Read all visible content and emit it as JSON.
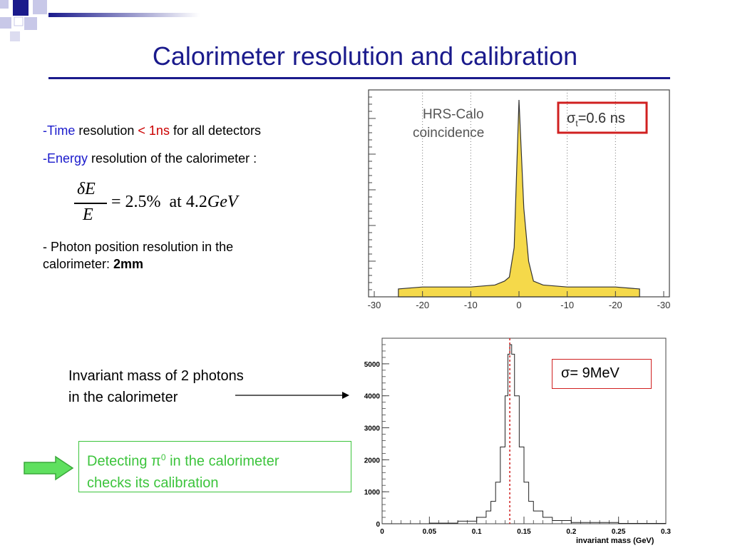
{
  "slide": {
    "title": "Calorimeter resolution and calibration"
  },
  "bullets": {
    "time": {
      "dash": "-",
      "word": "Time",
      "mid": " resolution ",
      "lt": "< 1ns",
      "tail": " for all detectors"
    },
    "energy": {
      "dash": "-",
      "word": "Energy",
      "tail": " resolution of the calorimeter :"
    },
    "formula": {
      "numerator": "δE",
      "denominator": "E",
      "rhs": "= 2.5%",
      "at": "at",
      "value": "4.2",
      "unit": "GeV"
    },
    "photon": {
      "line1": "- Photon position resolution in the",
      "line2": "calorimeter: ",
      "bold": "2mm"
    }
  },
  "invariant": {
    "line1": "Invariant mass of 2 photons",
    "line2": "in the calorimeter"
  },
  "callout": {
    "line1_a": "Detecting π",
    "line1_sup": "0",
    "line1_b": " in the calorimeter",
    "line2": "checks its calibration"
  },
  "colors": {
    "title": "#1a1a8c",
    "highlight_blue": "#1a1acc",
    "highlight_red": "#cc0000",
    "callout_green": "#3cc43c",
    "histogram_fill": "#f5d94a"
  },
  "chart_data": [
    {
      "type": "bar",
      "title": "",
      "annotation_label": "HRS-Calo coincidence",
      "annotation_box": "σt=0.6 ns",
      "x_tick_labels": [
        "-30",
        "-20",
        "-10",
        "0",
        "-10",
        "-20",
        "-30"
      ],
      "xlim": [
        -30,
        30
      ],
      "series": [
        {
          "x": [
            -25,
            -20,
            -15,
            -10,
            -5,
            -3,
            -2,
            -1,
            0,
            1,
            2,
            3,
            5,
            10,
            15,
            20,
            25
          ],
          "values": [
            4,
            5,
            5,
            5,
            6,
            8,
            10,
            25,
            100,
            45,
            18,
            8,
            6,
            5,
            5,
            5,
            4
          ]
        }
      ],
      "grid_vertical_dotted": true
    },
    {
      "type": "line",
      "title": "",
      "xlabel": "invariant mass (GeV)",
      "ylabel": "",
      "xlim": [
        0,
        0.3
      ],
      "ylim": [
        0,
        5800
      ],
      "x_ticks": [
        "0",
        "0.05",
        "0.1",
        "0.15",
        "0.2",
        "0.25",
        "0.3"
      ],
      "y_ticks": [
        "0",
        "1000",
        "2000",
        "3000",
        "4000",
        "5000"
      ],
      "annotation_box": "σ= 9MeV",
      "marker_line_x": 0.135,
      "series": [
        {
          "x": [
            0.0,
            0.05,
            0.08,
            0.1,
            0.11,
            0.115,
            0.12,
            0.125,
            0.13,
            0.133,
            0.135,
            0.137,
            0.14,
            0.145,
            0.15,
            0.155,
            0.16,
            0.17,
            0.18,
            0.2,
            0.25,
            0.3
          ],
          "values": [
            0,
            20,
            80,
            200,
            400,
            700,
            1300,
            2400,
            4000,
            5300,
            5600,
            5300,
            4000,
            2400,
            1300,
            700,
            400,
            200,
            100,
            40,
            10,
            0
          ]
        }
      ]
    }
  ]
}
